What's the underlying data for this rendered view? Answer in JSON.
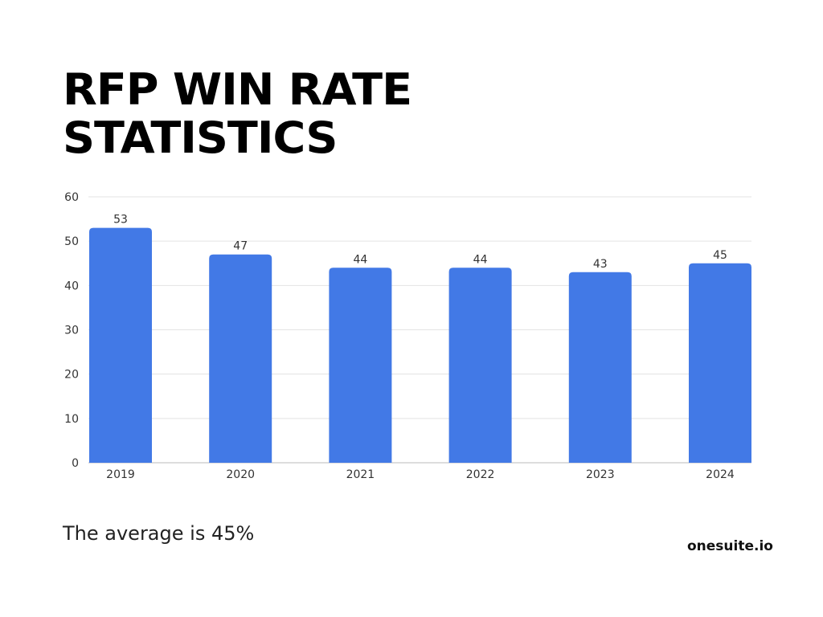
{
  "chart_data": {
    "type": "bar",
    "title": "RFP WIN RATE STATISTICS",
    "title_lines": [
      "RFP WIN RATE",
      "STATISTICS"
    ],
    "categories": [
      "2019",
      "2020",
      "2021",
      "2022",
      "2023",
      "2024"
    ],
    "values": [
      53,
      47,
      44,
      44,
      43,
      45
    ],
    "xlabel": "",
    "ylabel": "",
    "ylim": [
      0,
      60
    ],
    "yticks": [
      0,
      10,
      20,
      30,
      40,
      50,
      60
    ],
    "grid": true,
    "data_labels": true,
    "bar_color": "#4279e6"
  },
  "footer": {
    "note": "The average is 45%",
    "brand": "onesuite.io"
  }
}
